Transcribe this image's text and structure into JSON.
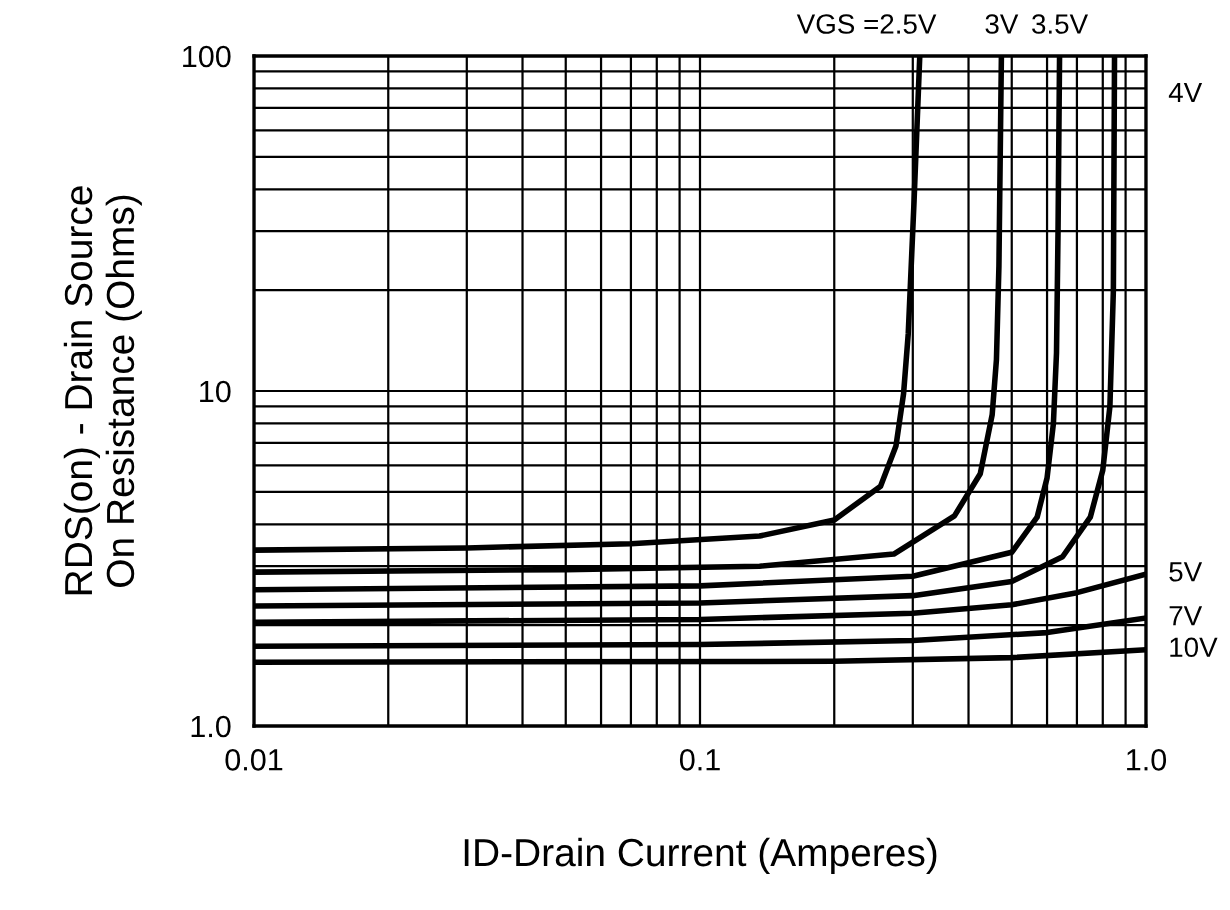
{
  "chart_data": {
    "type": "line",
    "xlabel": "ID-Drain Current (Amperes)",
    "ylabel": "RDS(on) - Drain Source\nOn Resistance (Ohms)",
    "log": "xy",
    "grid": true,
    "legend": false,
    "marker": "none",
    "line_style": "solid",
    "xlim": [
      0.01,
      1.0
    ],
    "ylim": [
      1.0,
      100
    ],
    "xticks": [
      0.01,
      0.1,
      {
        "value": 1.0,
        "label": "1.0"
      }
    ],
    "yticks": [
      {
        "value": 1.0,
        "label": "1.0"
      },
      10,
      100
    ],
    "series": [
      {
        "name": "VGS =2.5V",
        "color": "#000000",
        "x": [
          0.01,
          0.03,
          0.07,
          0.136,
          0.2,
          0.254,
          0.275,
          0.286,
          0.293,
          0.302,
          0.311
        ],
        "values": [
          3.35,
          3.4,
          3.5,
          3.69,
          4.12,
          5.2,
          6.85,
          9.8,
          14.8,
          37,
          100
        ]
      },
      {
        "name": "3V",
        "color": "#000000",
        "x": [
          0.01,
          0.05,
          0.136,
          0.272,
          0.372,
          0.425,
          0.452,
          0.462,
          0.468,
          0.474
        ],
        "values": [
          2.88,
          2.93,
          3.0,
          3.26,
          4.24,
          5.66,
          8.5,
          12.4,
          23.6,
          100
        ]
      },
      {
        "name": "3.5V",
        "color": "#000000",
        "x": [
          0.01,
          0.1,
          0.3,
          0.5,
          0.57,
          0.6,
          0.62,
          0.63,
          0.635,
          0.64
        ],
        "values": [
          2.55,
          2.62,
          2.8,
          3.3,
          4.2,
          5.5,
          8,
          13,
          30,
          100
        ]
      },
      {
        "name": "4V",
        "color": "#000000",
        "x": [
          0.01,
          0.1,
          0.3,
          0.5,
          0.65,
          0.75,
          0.8,
          0.83,
          0.845,
          0.85
        ],
        "values": [
          2.28,
          2.33,
          2.45,
          2.7,
          3.2,
          4.2,
          5.8,
          9,
          20,
          100
        ]
      },
      {
        "name": "5V",
        "color": "#000000",
        "x": [
          0.01,
          0.1,
          0.3,
          0.5,
          0.7,
          1.0
        ],
        "values": [
          2.04,
          2.08,
          2.17,
          2.3,
          2.5,
          2.84
        ]
      },
      {
        "name": "7V",
        "color": "#000000",
        "x": [
          0.01,
          0.1,
          0.3,
          0.6,
          1.0
        ],
        "values": [
          1.73,
          1.75,
          1.8,
          1.9,
          2.1
        ]
      },
      {
        "name": "10V",
        "color": "#000000",
        "x": [
          0.01,
          0.2,
          0.5,
          1.0
        ],
        "values": [
          1.55,
          1.56,
          1.6,
          1.69
        ]
      }
    ]
  }
}
